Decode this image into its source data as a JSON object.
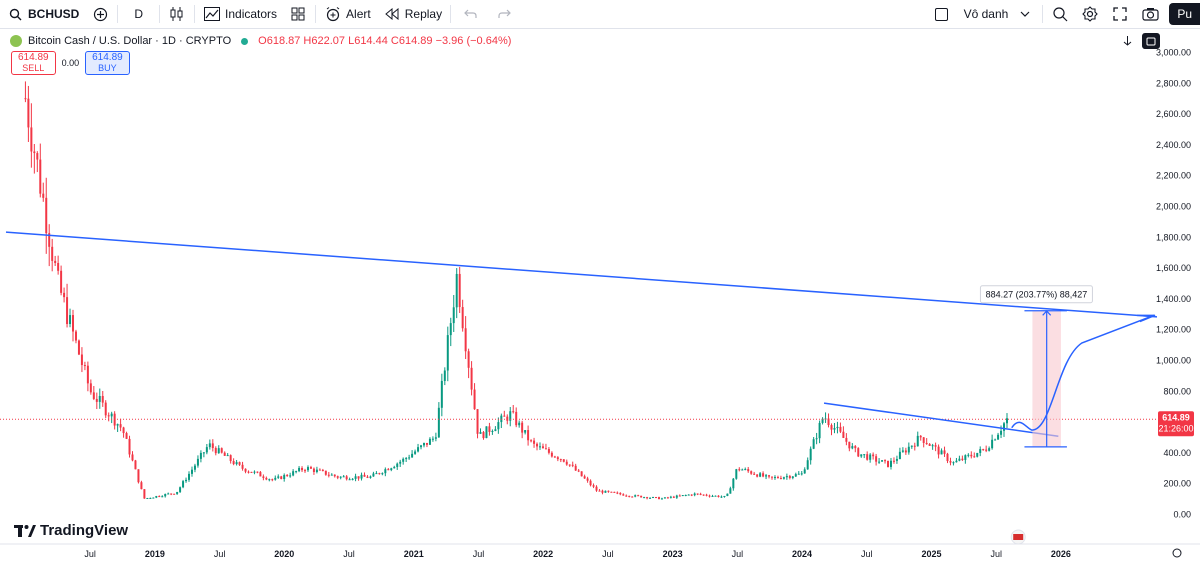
{
  "toolbar": {
    "symbol": "BCHUSD",
    "interval": "D",
    "indicators_label": "Indicators",
    "alert_label": "Alert",
    "replay_label": "Replay",
    "layout_name": "Vô danh",
    "publish_label": "Pu"
  },
  "legend": {
    "title": "Bitcoin Cash / U.S. Dollar · 1D · CRYPTO",
    "open": "O618.87",
    "high": "H622.07",
    "low": "L614.44",
    "close": "C614.89",
    "change": "−3.96 (−0.64%)"
  },
  "trade": {
    "sell_price": "614.89",
    "sell_label": "SELL",
    "spread": "0.00",
    "buy_price": "614.89",
    "buy_label": "BUY"
  },
  "price_axis": {
    "ticks": [
      "3,000.00",
      "2,800.00",
      "2,600.00",
      "2,400.00",
      "2,200.00",
      "2,000.00",
      "1,800.00",
      "1,600.00",
      "1,400.00",
      "1,200.00",
      "1,000.00",
      "800.00",
      "400.00",
      "200.00",
      "0.00"
    ],
    "current_price": "614.89",
    "countdown": "21:26:00"
  },
  "time_axis": {
    "labels": [
      "Jul",
      "2019",
      "Jul",
      "2020",
      "Jul",
      "2021",
      "Jul",
      "2022",
      "Jul",
      "2023",
      "Jul",
      "2024",
      "Jul",
      "2025",
      "Jul",
      "2026"
    ]
  },
  "annotation": {
    "measure_label": "884.27 (203.77%) 88,427"
  },
  "branding": {
    "logo_text": "TradingView"
  },
  "colors": {
    "candle_up": "#089981",
    "candle_down": "#f23645",
    "trendline": "#2962ff",
    "price_line": "#f23645",
    "measure_fill": "#f8c8cf"
  },
  "chart_data": {
    "type": "candlestick",
    "title": "Bitcoin Cash / U.S. Dollar · 1D · CRYPTO",
    "xlabel": "",
    "ylabel": "",
    "ylim": [
      0,
      3000
    ],
    "x": [
      "2018-01",
      "2018-04",
      "2018-07",
      "2018-10",
      "2018-12",
      "2019-03",
      "2019-06",
      "2019-09",
      "2019-12",
      "2020-03",
      "2020-06",
      "2020-09",
      "2020-12",
      "2021-03",
      "2021-05",
      "2021-07",
      "2021-10",
      "2021-12",
      "2022-03",
      "2022-06",
      "2022-09",
      "2022-12",
      "2023-03",
      "2023-06",
      "2023-07",
      "2023-10",
      "2024-01",
      "2024-03",
      "2024-06",
      "2024-09",
      "2024-12",
      "2025-03",
      "2025-06",
      "2025-08"
    ],
    "y": [
      2700,
      1500,
      800,
      550,
      100,
      140,
      450,
      300,
      220,
      300,
      240,
      240,
      350,
      500,
      1550,
      500,
      650,
      450,
      350,
      150,
      120,
      100,
      130,
      110,
      300,
      230,
      260,
      640,
      400,
      320,
      500,
      330,
      420,
      615
    ]
  }
}
